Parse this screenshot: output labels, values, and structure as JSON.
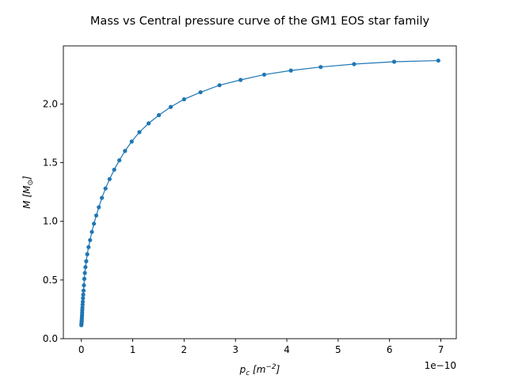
{
  "chart_data": {
    "type": "line",
    "title": "Mass vs Central pressure curve of the GM1 EOS star family",
    "xlabel_main": "p",
    "xlabel_sub": "c",
    "xlabel_unit_open": " [m",
    "xlabel_unit_exp": "−2",
    "xlabel_unit_close": "]",
    "ylabel_main": "M",
    "ylabel_unit_open": " [M",
    "ylabel_unit_sub": "⊙",
    "ylabel_unit_close": "]",
    "x_scale_label": "1e−10",
    "x_scale_factor": 1e-10,
    "xlim": [
      -3.5e-11,
      7.3e-10
    ],
    "ylim": [
      0.0,
      2.495
    ],
    "xticks": [
      0,
      1,
      2,
      3,
      4,
      5,
      6,
      7
    ],
    "xtick_labels": [
      "0",
      "1",
      "2",
      "3",
      "4",
      "5",
      "6",
      "7"
    ],
    "yticks": [
      0.0,
      0.5,
      1.0,
      1.5,
      2.0
    ],
    "ytick_labels": [
      "0.0",
      "0.5",
      "1.0",
      "1.5",
      "2.0"
    ],
    "grid": false,
    "marker": "circle",
    "line_color": "#1f77b4",
    "series": [
      {
        "x": [
          0.0,
          2e-13,
          4e-13,
          6e-13,
          8e-13,
          1e-12,
          1.2e-12,
          1.4e-12,
          1.6e-12,
          1.8e-12,
          2.1e-12,
          2.4e-12,
          2.8e-12,
          3.2e-12,
          3.7e-12,
          4.3e-12,
          5e-12,
          5.8e-12,
          6.8e-12,
          8e-12,
          9.5e-12,
          1.15e-11,
          1.4e-11,
          1.7e-11,
          2.05e-11,
          2.45e-11,
          2.9e-11,
          3.4e-11,
          4e-11,
          4.7e-11,
          5.5e-11,
          6.4e-11,
          7.4e-11,
          8.5e-11,
          9.8e-11,
          1.13e-10,
          1.31e-10,
          1.51e-10,
          1.74e-10,
          2e-10,
          2.32e-10,
          2.69e-10,
          3.1e-10,
          3.56e-10,
          4.08e-10,
          4.66e-10,
          5.31e-10,
          6.09e-10,
          6.95e-10
        ],
        "y": [
          0.115,
          0.125,
          0.135,
          0.148,
          0.16,
          0.175,
          0.19,
          0.205,
          0.225,
          0.245,
          0.265,
          0.29,
          0.315,
          0.345,
          0.375,
          0.41,
          0.455,
          0.51,
          0.56,
          0.61,
          0.66,
          0.72,
          0.78,
          0.84,
          0.91,
          0.98,
          1.05,
          1.12,
          1.2,
          1.28,
          1.36,
          1.44,
          1.52,
          1.6,
          1.68,
          1.76,
          1.835,
          1.905,
          1.975,
          2.04,
          2.1,
          2.16,
          2.205,
          2.25,
          2.285,
          2.315,
          2.34,
          2.36,
          2.37
        ]
      }
    ]
  }
}
